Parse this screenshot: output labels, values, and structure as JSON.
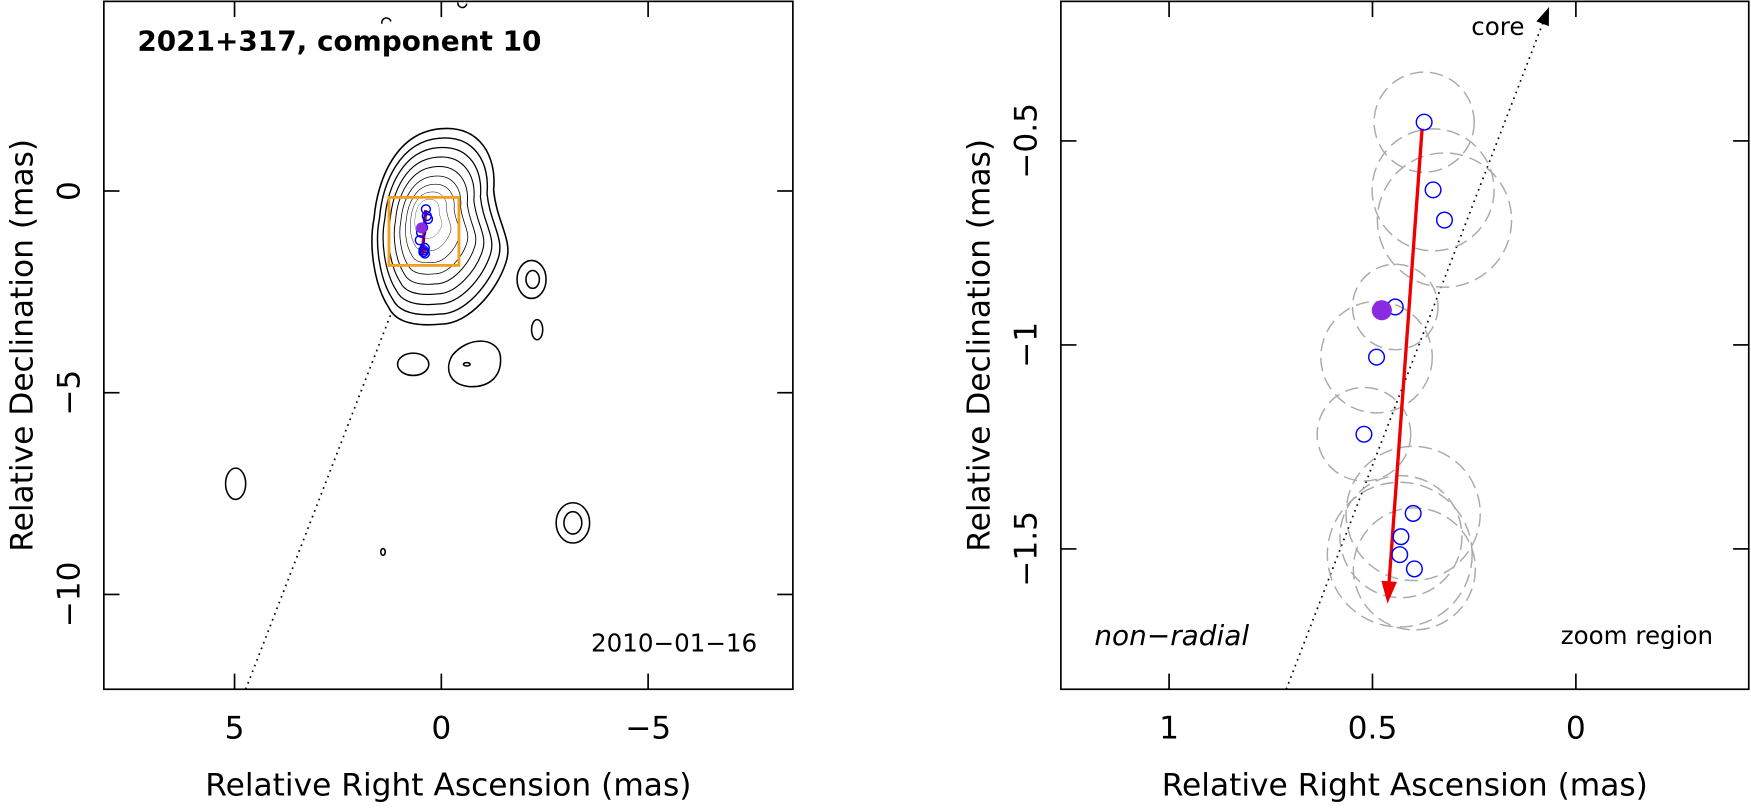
{
  "chart_data": [
    {
      "type": "contour",
      "title": "2021+317, component 10",
      "date": "2010−01−16",
      "x_label": "Relative Right Ascension (mas)",
      "y_label": "Relative Declination (mas)",
      "xlim": [
        8.16,
        -8.5
      ],
      "ylim": [
        -12.35,
        4.7
      ],
      "xticks": [
        5,
        0,
        {
          "value": -5,
          "label": "−5"
        }
      ],
      "yticks": [
        {
          "value": -10,
          "label": "−10"
        },
        {
          "value": -5,
          "label": "−5"
        },
        0
      ],
      "components": {
        "x": [
          0.373,
          0.351,
          0.323,
          0.444,
          0.49,
          0.521,
          0.4,
          0.43,
          0.433,
          0.397
        ],
        "y": [
          -0.454,
          -0.62,
          -0.694,
          -0.907,
          -1.03,
          -1.219,
          -1.413,
          -1.47,
          -1.514,
          -1.549
        ],
        "color": "#0000ff"
      },
      "reference": {
        "x": 0.477,
        "y": -0.915,
        "color": "#8a2be2"
      },
      "motion": {
        "x": [
          0.378,
          0.463
        ],
        "y": [
          -0.47,
          -1.634
        ],
        "color": "#ee0000"
      },
      "radial_line": {
        "x": [
          4.73,
          1.2
        ],
        "y": [
          -12.35,
          -3.0
        ]
      },
      "zoom_box": {
        "x": [
          1.266,
          -0.425
        ],
        "y": [
          -0.158,
          -1.844
        ],
        "color": "#f0a020"
      }
    },
    {
      "type": "zoom",
      "x_label": "Relative Right Ascension (mas)",
      "y_label": "Relative Declination (mas)",
      "xlim": [
        1.266,
        -0.425
      ],
      "ylim": [
        -1.844,
        -0.158
      ],
      "xticks": [
        1,
        0.5,
        0
      ],
      "yticks": [
        {
          "value": -1.5,
          "label": "−1.5"
        },
        {
          "value": -1,
          "label": "−1"
        },
        {
          "value": -0.5,
          "label": "−0.5"
        }
      ],
      "components": {
        "x": [
          0.373,
          0.351,
          0.323,
          0.444,
          0.49,
          0.521,
          0.4,
          0.43,
          0.433,
          0.397
        ],
        "y": [
          -0.454,
          -0.62,
          -0.694,
          -0.907,
          -1.03,
          -1.219,
          -1.413,
          -1.47,
          -1.514,
          -1.549
        ],
        "radius": [
          0.123,
          0.15,
          0.165,
          0.105,
          0.137,
          0.115,
          0.165,
          0.15,
          0.178,
          0.15
        ],
        "color": "#0000ff"
      },
      "reference": {
        "x": 0.477,
        "y": -0.915,
        "color": "#8a2be2"
      },
      "motion": {
        "x": [
          0.378,
          0.463
        ],
        "y": [
          -0.47,
          -1.634
        ],
        "color": "#ee0000"
      },
      "radial_line": {
        "x": [
          0.712,
          0.066
        ],
        "y": [
          -1.844,
          -0.172
        ],
        "label": "core"
      },
      "classification": "non−radial",
      "region_label": "zoom region"
    }
  ]
}
